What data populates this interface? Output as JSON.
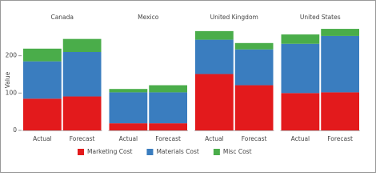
{
  "chart_data": {
    "type": "bar",
    "stacked": true,
    "ylabel": "Value",
    "ylim": [
      0,
      285
    ],
    "yticks": [
      0,
      100,
      200
    ],
    "legend": "bottom",
    "series": [
      {
        "name": "Marketing Cost",
        "color": "#e31a1c"
      },
      {
        "name": "Materials Cost",
        "color": "#3a7dbf"
      },
      {
        "name": "Misc Cost",
        "color": "#4aad4a"
      }
    ],
    "panels": [
      {
        "title": "Canada",
        "categories": [
          "Actual",
          "Forecast"
        ],
        "series": [
          {
            "values": [
              85,
              91
            ]
          },
          {
            "values": [
              100,
              119
            ]
          },
          {
            "values": [
              34,
              35
            ]
          }
        ]
      },
      {
        "title": "Mexico",
        "categories": [
          "Actual",
          "Forecast"
        ],
        "series": [
          {
            "values": [
              19,
              19
            ]
          },
          {
            "values": [
              83,
              83
            ]
          },
          {
            "values": [
              9,
              19
            ]
          }
        ]
      },
      {
        "title": "United Kingdom",
        "categories": [
          "Actual",
          "Forecast"
        ],
        "series": [
          {
            "values": [
              151,
              121
            ]
          },
          {
            "values": [
              92,
              96
            ]
          },
          {
            "values": [
              23,
              17
            ]
          }
        ]
      },
      {
        "title": "United States",
        "categories": [
          "Actual",
          "Forecast"
        ],
        "series": [
          {
            "values": [
              100,
              102
            ]
          },
          {
            "values": [
              132,
              151
            ]
          },
          {
            "values": [
              25,
              19
            ]
          }
        ]
      }
    ]
  }
}
